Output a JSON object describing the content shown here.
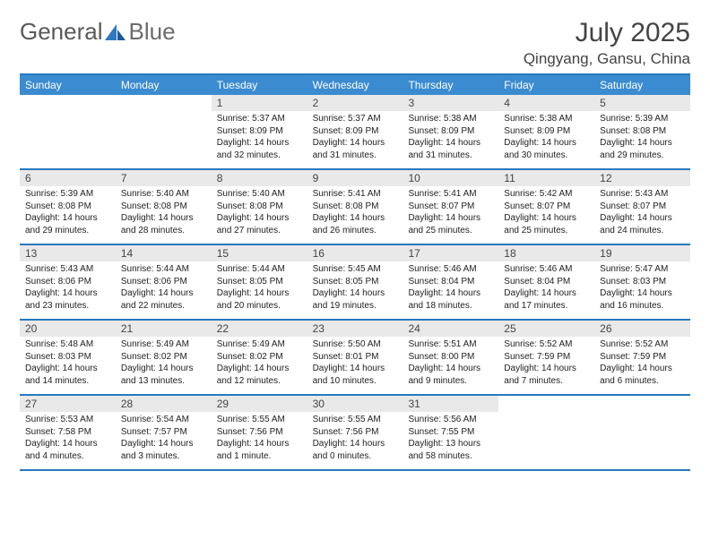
{
  "logo": {
    "text1": "General",
    "text2": "Blue"
  },
  "title": "July 2025",
  "location": "Qingyang, Gansu, China",
  "header_color": "#3b8bd0",
  "border_color": "#2779bd",
  "daynum_bg": "#e9e9e9",
  "text_color": "#444444",
  "body_font_size": 10,
  "weekdays": [
    "Sunday",
    "Monday",
    "Tuesday",
    "Wednesday",
    "Thursday",
    "Friday",
    "Saturday"
  ],
  "weeks": [
    [
      {
        "n": "",
        "sr": "",
        "ss": "",
        "dl": ""
      },
      {
        "n": "",
        "sr": "",
        "ss": "",
        "dl": ""
      },
      {
        "n": "1",
        "sr": "5:37 AM",
        "ss": "8:09 PM",
        "dl": "14 hours and 32 minutes."
      },
      {
        "n": "2",
        "sr": "5:37 AM",
        "ss": "8:09 PM",
        "dl": "14 hours and 31 minutes."
      },
      {
        "n": "3",
        "sr": "5:38 AM",
        "ss": "8:09 PM",
        "dl": "14 hours and 31 minutes."
      },
      {
        "n": "4",
        "sr": "5:38 AM",
        "ss": "8:09 PM",
        "dl": "14 hours and 30 minutes."
      },
      {
        "n": "5",
        "sr": "5:39 AM",
        "ss": "8:08 PM",
        "dl": "14 hours and 29 minutes."
      }
    ],
    [
      {
        "n": "6",
        "sr": "5:39 AM",
        "ss": "8:08 PM",
        "dl": "14 hours and 29 minutes."
      },
      {
        "n": "7",
        "sr": "5:40 AM",
        "ss": "8:08 PM",
        "dl": "14 hours and 28 minutes."
      },
      {
        "n": "8",
        "sr": "5:40 AM",
        "ss": "8:08 PM",
        "dl": "14 hours and 27 minutes."
      },
      {
        "n": "9",
        "sr": "5:41 AM",
        "ss": "8:08 PM",
        "dl": "14 hours and 26 minutes."
      },
      {
        "n": "10",
        "sr": "5:41 AM",
        "ss": "8:07 PM",
        "dl": "14 hours and 25 minutes."
      },
      {
        "n": "11",
        "sr": "5:42 AM",
        "ss": "8:07 PM",
        "dl": "14 hours and 25 minutes."
      },
      {
        "n": "12",
        "sr": "5:43 AM",
        "ss": "8:07 PM",
        "dl": "14 hours and 24 minutes."
      }
    ],
    [
      {
        "n": "13",
        "sr": "5:43 AM",
        "ss": "8:06 PM",
        "dl": "14 hours and 23 minutes."
      },
      {
        "n": "14",
        "sr": "5:44 AM",
        "ss": "8:06 PM",
        "dl": "14 hours and 22 minutes."
      },
      {
        "n": "15",
        "sr": "5:44 AM",
        "ss": "8:05 PM",
        "dl": "14 hours and 20 minutes."
      },
      {
        "n": "16",
        "sr": "5:45 AM",
        "ss": "8:05 PM",
        "dl": "14 hours and 19 minutes."
      },
      {
        "n": "17",
        "sr": "5:46 AM",
        "ss": "8:04 PM",
        "dl": "14 hours and 18 minutes."
      },
      {
        "n": "18",
        "sr": "5:46 AM",
        "ss": "8:04 PM",
        "dl": "14 hours and 17 minutes."
      },
      {
        "n": "19",
        "sr": "5:47 AM",
        "ss": "8:03 PM",
        "dl": "14 hours and 16 minutes."
      }
    ],
    [
      {
        "n": "20",
        "sr": "5:48 AM",
        "ss": "8:03 PM",
        "dl": "14 hours and 14 minutes."
      },
      {
        "n": "21",
        "sr": "5:49 AM",
        "ss": "8:02 PM",
        "dl": "14 hours and 13 minutes."
      },
      {
        "n": "22",
        "sr": "5:49 AM",
        "ss": "8:02 PM",
        "dl": "14 hours and 12 minutes."
      },
      {
        "n": "23",
        "sr": "5:50 AM",
        "ss": "8:01 PM",
        "dl": "14 hours and 10 minutes."
      },
      {
        "n": "24",
        "sr": "5:51 AM",
        "ss": "8:00 PM",
        "dl": "14 hours and 9 minutes."
      },
      {
        "n": "25",
        "sr": "5:52 AM",
        "ss": "7:59 PM",
        "dl": "14 hours and 7 minutes."
      },
      {
        "n": "26",
        "sr": "5:52 AM",
        "ss": "7:59 PM",
        "dl": "14 hours and 6 minutes."
      }
    ],
    [
      {
        "n": "27",
        "sr": "5:53 AM",
        "ss": "7:58 PM",
        "dl": "14 hours and 4 minutes."
      },
      {
        "n": "28",
        "sr": "5:54 AM",
        "ss": "7:57 PM",
        "dl": "14 hours and 3 minutes."
      },
      {
        "n": "29",
        "sr": "5:55 AM",
        "ss": "7:56 PM",
        "dl": "14 hours and 1 minute."
      },
      {
        "n": "30",
        "sr": "5:55 AM",
        "ss": "7:56 PM",
        "dl": "14 hours and 0 minutes."
      },
      {
        "n": "31",
        "sr": "5:56 AM",
        "ss": "7:55 PM",
        "dl": "13 hours and 58 minutes."
      },
      {
        "n": "",
        "sr": "",
        "ss": "",
        "dl": ""
      },
      {
        "n": "",
        "sr": "",
        "ss": "",
        "dl": ""
      }
    ]
  ],
  "labels": {
    "sunrise": "Sunrise: ",
    "sunset": "Sunset: ",
    "daylight": "Daylight: "
  }
}
